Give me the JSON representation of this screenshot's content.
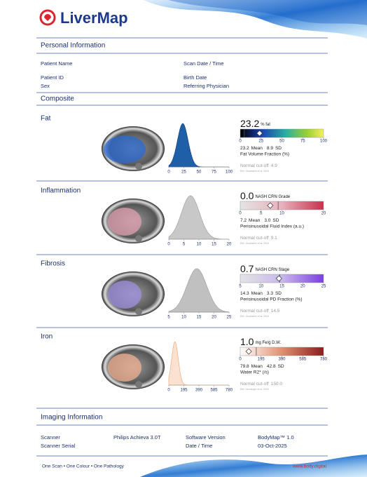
{
  "header": {
    "title": "LiverMap"
  },
  "personal_information": {
    "heading": "Personal Information",
    "fields": [
      "Patient Name",
      "Scan Date / Time",
      "Patient ID",
      "Birth Date",
      "Sex",
      "Referring Physician"
    ]
  },
  "composite": {
    "heading": "Composite",
    "panels": [
      {
        "title": "Fat",
        "value": "23.2",
        "unit": "% fat",
        "scale_ticks": [
          0,
          25,
          50,
          75,
          100
        ],
        "mean": 23.2,
        "mean_label": "Mean",
        "sd": 8.9,
        "sd_label": "SD",
        "metric": "Fat Volume Fraction (%)",
        "cutoff_label": "Normal cut-off",
        "cutoff": 4.9,
        "reference": "Ref. Gluckstein et al. 2024",
        "histogram_ticks": [
          0,
          25,
          50,
          75,
          100
        ]
      },
      {
        "title": "Inflammation",
        "value": "0.0",
        "unit": "NASH CRN Grade",
        "scale_ticks": [
          0,
          5,
          10,
          20
        ],
        "mean": 7.2,
        "mean_label": "Mean",
        "sd": 3.0,
        "sd_text": "3.0",
        "sd_label": "SD",
        "metric": "Perisinusoidal Fluid Index (a.u.)",
        "cutoff_label": "Normal cut-off",
        "cutoff": 9.1,
        "reference": "Ref. Gluckstein et al. 2024",
        "histogram_ticks": [
          0,
          5,
          10,
          15,
          20
        ]
      },
      {
        "title": "Fibrosis",
        "value": "0.7",
        "unit": "NASH CRN Stage",
        "scale_ticks": [
          5,
          10,
          15,
          20,
          25
        ],
        "mean": 14.3,
        "mean_label": "Mean",
        "sd": 3.3,
        "sd_label": "SD",
        "metric": "Perisinusoidal PD Fraction (%)",
        "cutoff_label": "Normal cut-off",
        "cutoff": 14.5,
        "reference": "Ref. Gluckstein et al. 2024",
        "histogram_ticks": [
          5,
          10,
          15,
          20,
          25
        ]
      },
      {
        "title": "Iron",
        "value": "1.0",
        "unit": "mg Fe/g D.W.",
        "scale_ticks": [
          0,
          195,
          390,
          585,
          780
        ],
        "mean": 79.8,
        "mean_label": "Mean",
        "sd": 42.8,
        "sd_label": "SD",
        "metric": "Water R2* (/s)",
        "cutoff_label": "Normal cut-off",
        "cutoff": 150,
        "cutoff_text": "150.0",
        "reference": "Ref. Henninger et al. 2020",
        "histogram_ticks": [
          0,
          195,
          390,
          585,
          780
        ]
      }
    ]
  },
  "imaging_information": {
    "heading": "Imaging Information",
    "fields": [
      {
        "label": "Scanner",
        "value": "Philips Achieva 3.0T"
      },
      {
        "label": "Software Version",
        "value": "BodyMap™ 1.0"
      },
      {
        "label": "Scanner Serial"
      },
      {
        "label": "Date / Time",
        "value": "03-Oct-2025"
      }
    ]
  },
  "footer": {
    "tagline": "One Scan • One Colour • One Pathology",
    "url": "www.body.digital"
  }
}
